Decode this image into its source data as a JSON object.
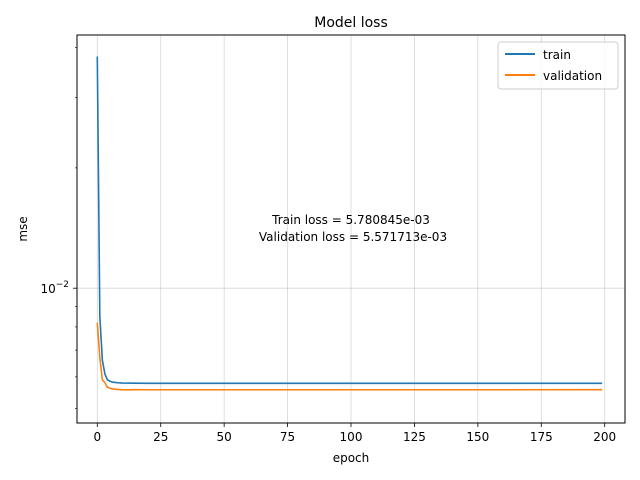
{
  "chart_data": {
    "type": "line",
    "title": "Model loss",
    "xlabel": "epoch",
    "ylabel": "mse",
    "y_scale": "log",
    "grid": true,
    "legend_position": "top-right",
    "xlim": [
      -8,
      208
    ],
    "ylim": [
      0.0046,
      0.043
    ],
    "x_ticks": [
      0,
      25,
      50,
      75,
      100,
      125,
      150,
      175,
      200
    ],
    "x_tick_labels": [
      "0",
      "25",
      "50",
      "75",
      "100",
      "125",
      "150",
      "175",
      "200"
    ],
    "y_major_ticks": [
      0.01
    ],
    "y_major_tick_label": "10",
    "y_major_tick_exponent": "−2",
    "y_minor_ticks": [
      0.005,
      0.006,
      0.007,
      0.008,
      0.009,
      0.02,
      0.03,
      0.04
    ],
    "annotation_lines": [
      "Train loss = 5.780845e-03",
      "Validation loss = 5.571713e-03"
    ],
    "series": [
      {
        "name": "train",
        "color": "#1f77b4",
        "x": [
          0,
          1,
          2,
          3,
          4,
          5,
          6,
          7,
          8,
          10,
          15,
          20,
          50,
          100,
          150,
          199
        ],
        "y": [
          0.038,
          0.0085,
          0.0066,
          0.0061,
          0.0059,
          0.00585,
          0.00582,
          0.00581,
          0.0058,
          0.00579,
          0.005785,
          0.00578,
          0.00578,
          0.00578,
          0.00578,
          0.005781
        ]
      },
      {
        "name": "validation",
        "color": "#ff7f0e",
        "x": [
          0,
          1,
          2,
          3,
          4,
          5,
          6,
          7,
          8,
          10,
          15,
          20,
          50,
          100,
          150,
          199
        ],
        "y": [
          0.0082,
          0.0067,
          0.0059,
          0.0058,
          0.00565,
          0.00562,
          0.0056,
          0.00559,
          0.00558,
          0.00557,
          0.005572,
          0.005571,
          0.005571,
          0.005571,
          0.005571,
          0.005572
        ]
      }
    ]
  }
}
